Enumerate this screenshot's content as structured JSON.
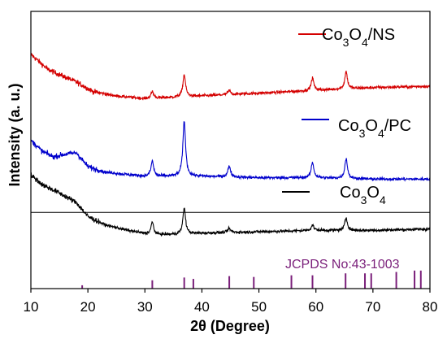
{
  "chart_data": {
    "type": "line",
    "title": "",
    "xlabel": "2θ (Degree)",
    "ylabel": "Intensity (a. u.)",
    "xlim": [
      10,
      80
    ],
    "xticks": [
      "10",
      "20",
      "30",
      "40",
      "50",
      "60",
      "70",
      "80"
    ],
    "y_ticks_shown": false,
    "legend_placement": "right, next to each trace",
    "series": [
      {
        "name": "Co3O4/NS",
        "legend_base": "Co",
        "legend_sub1": "3",
        "legend_mid": "O",
        "legend_sub2": "4",
        "legend_suffix": "/NS",
        "color": "#d40000",
        "baseline": [
          [
            10,
            8.45
          ],
          [
            13,
            7.9
          ],
          [
            18,
            7.45
          ],
          [
            21,
            7.1
          ],
          [
            25,
            6.95
          ],
          [
            30,
            6.85
          ],
          [
            35,
            6.9
          ],
          [
            40,
            6.95
          ],
          [
            50,
            7.05
          ],
          [
            60,
            7.15
          ],
          [
            70,
            7.25
          ],
          [
            80,
            7.3
          ]
        ],
        "peaks": [
          [
            31.3,
            0.25
          ],
          [
            36.9,
            0.8
          ],
          [
            44.8,
            0.15
          ],
          [
            59.4,
            0.45
          ],
          [
            65.3,
            0.62
          ]
        ]
      },
      {
        "name": "Co3O4/PC",
        "legend_base": "Co",
        "legend_sub1": "3",
        "legend_mid": "O",
        "legend_sub2": "4",
        "legend_suffix": "/PC",
        "color": "#0000cc",
        "baseline": [
          [
            10,
            5.35
          ],
          [
            12,
            4.95
          ],
          [
            14,
            4.75
          ],
          [
            16,
            4.85
          ],
          [
            18,
            4.9
          ],
          [
            20,
            4.4
          ],
          [
            23,
            4.2
          ],
          [
            30,
            4.05
          ],
          [
            40,
            4.05
          ],
          [
            50,
            4.0
          ],
          [
            60,
            4.0
          ],
          [
            70,
            3.95
          ],
          [
            80,
            3.95
          ]
        ],
        "peaks": [
          [
            31.3,
            0.55
          ],
          [
            36.9,
            2.0
          ],
          [
            44.8,
            0.4
          ],
          [
            59.4,
            0.55
          ],
          [
            65.3,
            0.72
          ]
        ]
      },
      {
        "name": "Co3O4",
        "legend_base": "Co",
        "legend_sub1": "3",
        "legend_mid": "O",
        "legend_sub2": "4",
        "legend_suffix": "",
        "color": "#000000",
        "baseline": [
          [
            10,
            4.1
          ],
          [
            12,
            3.75
          ],
          [
            15,
            3.45
          ],
          [
            18,
            3.1
          ],
          [
            20,
            2.6
          ],
          [
            23,
            2.3
          ],
          [
            27,
            2.1
          ],
          [
            31,
            1.95
          ],
          [
            35,
            1.95
          ],
          [
            40,
            2.0
          ],
          [
            50,
            2.05
          ],
          [
            60,
            2.1
          ],
          [
            70,
            2.1
          ],
          [
            80,
            2.15
          ]
        ],
        "peaks": [
          [
            31.3,
            0.45
          ],
          [
            36.9,
            0.95
          ],
          [
            44.8,
            0.15
          ],
          [
            59.4,
            0.2
          ],
          [
            65.3,
            0.45
          ]
        ]
      }
    ],
    "reference_line_y": 2.75,
    "reference_label": "JCPDS No:43-1003",
    "reference_color": "#7a1f7a",
    "reference_peaks": [
      {
        "x": 19.0,
        "h": 0.12
      },
      {
        "x": 31.3,
        "h": 0.3
      },
      {
        "x": 36.9,
        "h": 0.4
      },
      {
        "x": 38.5,
        "h": 0.35
      },
      {
        "x": 44.8,
        "h": 0.45
      },
      {
        "x": 49.1,
        "h": 0.42
      },
      {
        "x": 55.7,
        "h": 0.48
      },
      {
        "x": 59.4,
        "h": 0.48
      },
      {
        "x": 65.2,
        "h": 0.55
      },
      {
        "x": 68.6,
        "h": 0.55
      },
      {
        "x": 69.7,
        "h": 0.55
      },
      {
        "x": 74.1,
        "h": 0.6
      },
      {
        "x": 77.3,
        "h": 0.65
      },
      {
        "x": 78.4,
        "h": 0.65
      }
    ],
    "grid": false
  }
}
